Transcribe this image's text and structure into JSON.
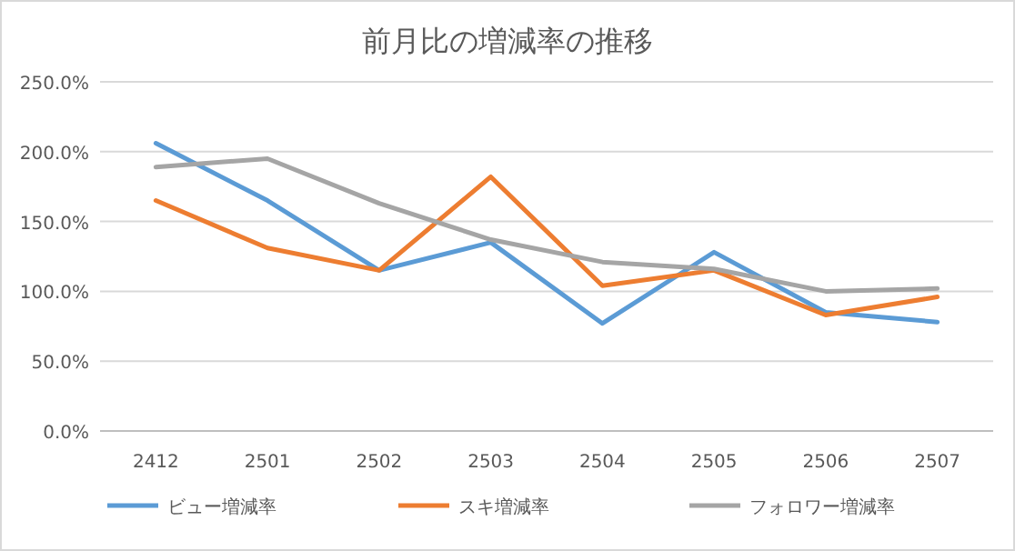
{
  "chart_data": {
    "type": "line",
    "title": "前月比の増減率の推移",
    "categories": [
      "2412",
      "2501",
      "2502",
      "2503",
      "2504",
      "2505",
      "2506",
      "2507"
    ],
    "series": [
      {
        "name": "ビュー増減率",
        "color": "#5b9bd5",
        "values": [
          206,
          165,
          115,
          135,
          77,
          128,
          85,
          78
        ]
      },
      {
        "name": "スキ増減率",
        "color": "#ed7d31",
        "values": [
          165,
          131,
          115,
          182,
          104,
          115,
          83,
          96
        ]
      },
      {
        "name": "フォロワー増減率",
        "color": "#a5a5a5",
        "values": [
          189,
          195,
          163,
          137,
          121,
          116,
          100,
          102
        ]
      }
    ],
    "ylim": [
      0,
      250
    ],
    "yticks": [
      {
        "value": 0,
        "label": "0.0%"
      },
      {
        "value": 50,
        "label": "50.0%"
      },
      {
        "value": 100,
        "label": "100.0%"
      },
      {
        "value": 150,
        "label": "150.0%"
      },
      {
        "value": 200,
        "label": "200.0%"
      },
      {
        "value": 250,
        "label": "250.0%"
      }
    ],
    "grid": "y",
    "legend": "bottom",
    "marker": "none",
    "line_style": "solid"
  }
}
